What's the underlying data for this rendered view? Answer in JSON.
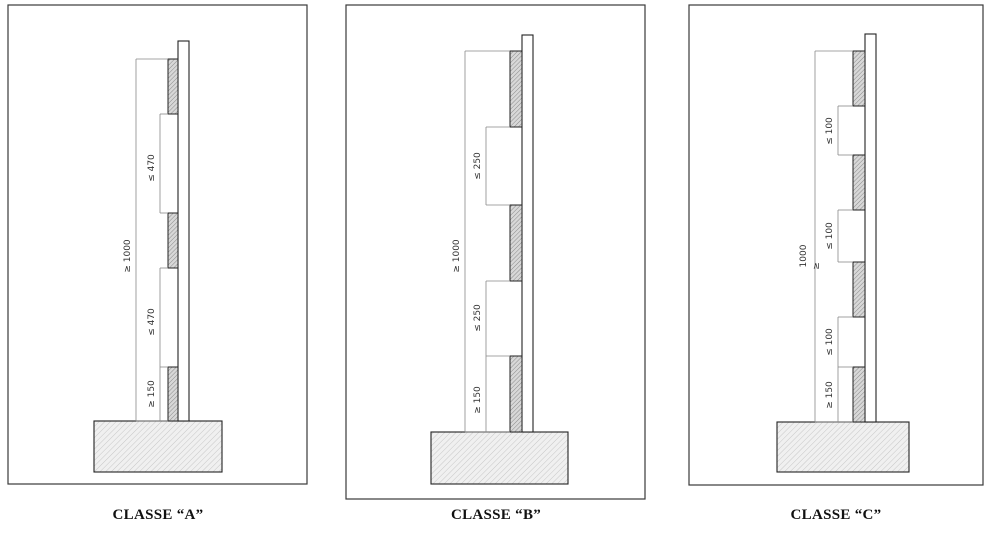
{
  "panels": [
    {
      "caption": "CLASSE “A”",
      "total_label": "≥ 1000",
      "gap_labels": [
        "≤ 470",
        "≤ 470"
      ],
      "bottom_label": "≥ 150"
    },
    {
      "caption": "CLASSE “B”",
      "total_label": "≥ 1000",
      "gap_labels": [
        "≤ 250",
        "≤ 250"
      ],
      "bottom_label": "≥ 150"
    },
    {
      "caption": "CLASSE “C”",
      "total_label": "1000",
      "total_label_symbol": "≥",
      "gap_labels": [
        "≤ 100",
        "≤ 100",
        "≤ 100"
      ],
      "bottom_label": "≥ 150"
    }
  ]
}
